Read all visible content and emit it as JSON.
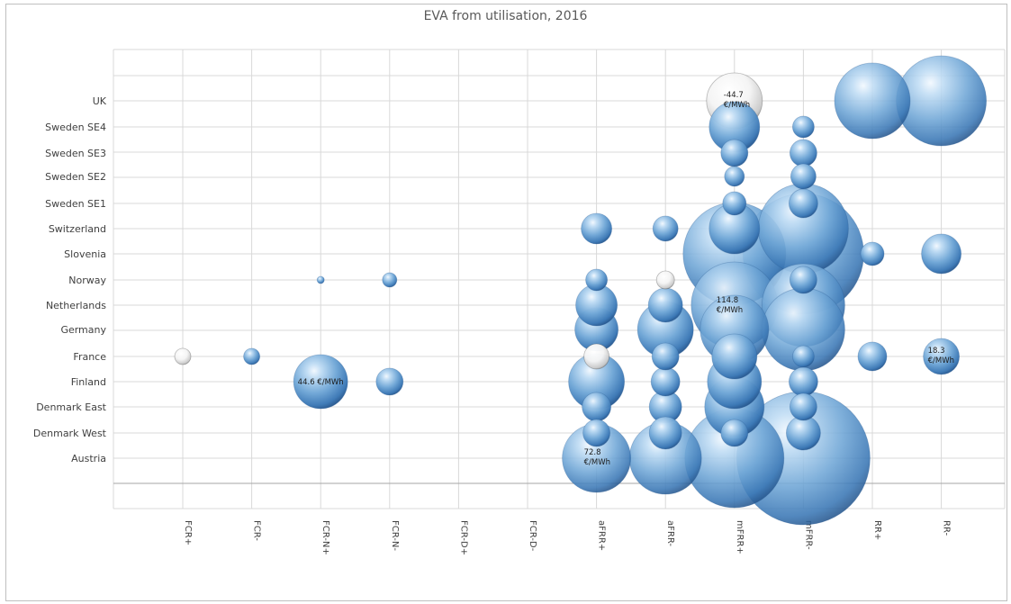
{
  "chart_data": {
    "type": "bubble",
    "title": "EVA from utilisation, 2016",
    "xlabel": "",
    "ylabel": "",
    "categories": [
      "FCR+",
      "FCR-",
      "FCR-N+",
      "FCR-N-",
      "FCR-D+",
      "FCR-D-",
      "aFRR+",
      "aFRR-",
      "mFRR+",
      "mFRR-",
      "RR+",
      "RR-"
    ],
    "countries": [
      "UK",
      "Sweden SE4",
      "Sweden SE3",
      "Sweden SE2",
      "Sweden SE1",
      "Switzerland",
      "Slovenia",
      "Norway",
      "Netherlands",
      "Germany",
      "France",
      "Finland",
      "Denmark East",
      "Denmark West",
      "Austria"
    ],
    "legend": "none",
    "grid": true,
    "bubble_value_unit": "€/MWh",
    "points": [
      {
        "product": "FCR+",
        "country": "France",
        "size": 9,
        "negative": true
      },
      {
        "product": "FCR-",
        "country": "France",
        "size": 9
      },
      {
        "product": "FCR-N+",
        "country": "Norway",
        "size": 4
      },
      {
        "product": "FCR-N+",
        "country": "Finland",
        "size": 30,
        "label": "44.6 €/MWh"
      },
      {
        "product": "FCR-N-",
        "country": "Norway",
        "size": 8
      },
      {
        "product": "FCR-N-",
        "country": "Finland",
        "size": 15
      },
      {
        "product": "aFRR+",
        "country": "Switzerland",
        "size": 17
      },
      {
        "product": "aFRR+",
        "country": "Norway",
        "size": 12
      },
      {
        "product": "aFRR+",
        "country": "Netherlands",
        "size": 23
      },
      {
        "product": "aFRR+",
        "country": "Germany",
        "size": 24
      },
      {
        "product": "aFRR+",
        "country": "France",
        "size": 14,
        "negative": true
      },
      {
        "product": "aFRR+",
        "country": "Finland",
        "size": 31
      },
      {
        "product": "aFRR+",
        "country": "Denmark East",
        "size": 16
      },
      {
        "product": "aFRR+",
        "country": "Denmark West",
        "size": 15
      },
      {
        "product": "aFRR+",
        "country": "Austria",
        "size": 38,
        "label": "72.8 €/MWh"
      },
      {
        "product": "aFRR-",
        "country": "Switzerland",
        "size": 14
      },
      {
        "product": "aFRR-",
        "country": "Norway",
        "size": 10,
        "negative": true
      },
      {
        "product": "aFRR-",
        "country": "Netherlands",
        "size": 19
      },
      {
        "product": "aFRR-",
        "country": "Germany",
        "size": 31
      },
      {
        "product": "aFRR-",
        "country": "France",
        "size": 15
      },
      {
        "product": "aFRR-",
        "country": "Finland",
        "size": 16
      },
      {
        "product": "aFRR-",
        "country": "Denmark East",
        "size": 18
      },
      {
        "product": "aFRR-",
        "country": "Denmark West",
        "size": 18
      },
      {
        "product": "aFRR-",
        "country": "Austria",
        "size": 40
      },
      {
        "product": "mFRR+",
        "country": "UK",
        "size": 31,
        "label": "-44.7 €/MWh",
        "negative": true
      },
      {
        "product": "mFRR+",
        "country": "Sweden SE4",
        "size": 28
      },
      {
        "product": "mFRR+",
        "country": "Sweden SE3",
        "size": 15
      },
      {
        "product": "mFRR+",
        "country": "Sweden SE2",
        "size": 11
      },
      {
        "product": "mFRR+",
        "country": "Sweden SE1",
        "size": 13
      },
      {
        "product": "mFRR+",
        "country": "Switzerland",
        "size": 28
      },
      {
        "product": "mFRR+",
        "country": "Slovenia",
        "size": 57
      },
      {
        "product": "mFRR+",
        "country": "Netherlands",
        "size": 48,
        "label": "114.8 €/MWh"
      },
      {
        "product": "mFRR+",
        "country": "Germany",
        "size": 38
      },
      {
        "product": "mFRR+",
        "country": "France",
        "size": 25
      },
      {
        "product": "mFRR+",
        "country": "Finland",
        "size": 30
      },
      {
        "product": "mFRR+",
        "country": "Denmark East",
        "size": 33
      },
      {
        "product": "mFRR+",
        "country": "Denmark West",
        "size": 15
      },
      {
        "product": "mFRR+",
        "country": "Austria",
        "size": 55
      },
      {
        "product": "mFRR-",
        "country": "Sweden SE4",
        "size": 12
      },
      {
        "product": "mFRR-",
        "country": "Sweden SE3",
        "size": 15
      },
      {
        "product": "mFRR-",
        "country": "Sweden SE2",
        "size": 14
      },
      {
        "product": "mFRR-",
        "country": "Sweden SE1",
        "size": 16
      },
      {
        "product": "mFRR-",
        "country": "Switzerland",
        "size": 50
      },
      {
        "product": "mFRR-",
        "country": "Slovenia",
        "size": 67
      },
      {
        "product": "mFRR-",
        "country": "Norway",
        "size": 15
      },
      {
        "product": "mFRR-",
        "country": "Netherlands",
        "size": 46
      },
      {
        "product": "mFRR-",
        "country": "Germany",
        "size": 46
      },
      {
        "product": "mFRR-",
        "country": "France",
        "size": 12
      },
      {
        "product": "mFRR-",
        "country": "Finland",
        "size": 16
      },
      {
        "product": "mFRR-",
        "country": "Denmark East",
        "size": 15
      },
      {
        "product": "mFRR-",
        "country": "Denmark West",
        "size": 19
      },
      {
        "product": "mFRR-",
        "country": "Austria",
        "size": 74
      },
      {
        "product": "RR+",
        "country": "UK",
        "size": 42
      },
      {
        "product": "RR+",
        "country": "Slovenia",
        "size": 13
      },
      {
        "product": "RR+",
        "country": "France",
        "size": 16
      },
      {
        "product": "RR-",
        "country": "UK",
        "size": 50
      },
      {
        "product": "RR-",
        "country": "Slovenia",
        "size": 22
      },
      {
        "product": "RR-",
        "country": "France",
        "size": 20,
        "label": "18.3 €/MWh"
      }
    ]
  }
}
